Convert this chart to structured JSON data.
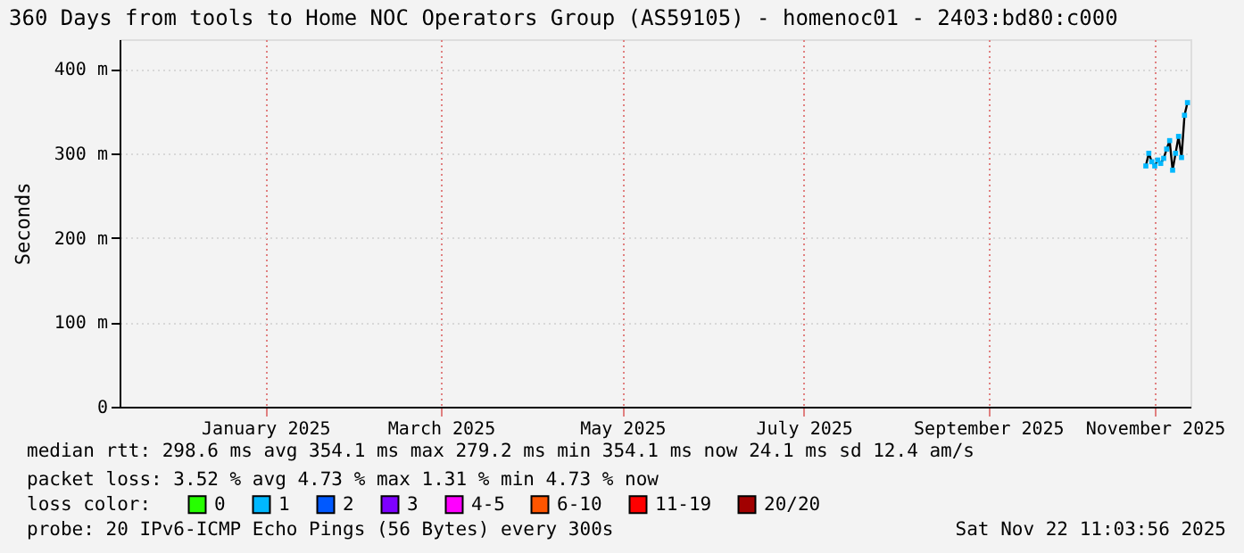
{
  "chart_data": {
    "type": "line",
    "title": "360 Days from tools to Home NOC Operators Group (AS59105) - homenoc01 - 2403:bd80:c000",
    "ylabel": "Seconds",
    "x": [
      "2025-11-07",
      "2025-11-08",
      "2025-11-09",
      "2025-11-10",
      "2025-11-11",
      "2025-11-12",
      "2025-11-13",
      "2025-11-14",
      "2025-11-15",
      "2025-11-16",
      "2025-11-17",
      "2025-11-18",
      "2025-11-19",
      "2025-11-20",
      "2025-11-21"
    ],
    "xlim": [
      "2024-11-27",
      "2025-11-22"
    ],
    "xticks": [
      {
        "value": "2025-01-15",
        "label": "January 2025"
      },
      {
        "value": "2025-03-15",
        "label": "March 2025"
      },
      {
        "value": "2025-05-15",
        "label": "May 2025"
      },
      {
        "value": "2025-07-15",
        "label": "July 2025"
      },
      {
        "value": "2025-09-15",
        "label": "September 2025"
      },
      {
        "value": "2025-11-10",
        "label": "November 2025"
      }
    ],
    "ylim": [
      0,
      435
    ],
    "yticks": [
      0,
      {
        "value": 100,
        "label": "100 m"
      },
      {
        "value": 200,
        "label": "200 m"
      },
      {
        "value": 300,
        "label": "300 m"
      },
      {
        "value": 400,
        "label": "400 m"
      }
    ],
    "grid": true,
    "legend": "bottom",
    "legend_title": "loss color:",
    "series": [
      {
        "color": "#000000",
        "values": [
          285,
          300,
          290,
          285,
          292,
          288,
          294,
          305,
          315,
          280,
          300,
          320,
          295,
          345,
          360
        ]
      },
      {
        "type": "scatter",
        "name": "0",
        "color": "#26ff00",
        "values": [
          null,
          null,
          null,
          null,
          null,
          null,
          null,
          null,
          null,
          null,
          null,
          null,
          null,
          null,
          null
        ]
      },
      {
        "type": "scatter",
        "name": "1",
        "color": "#00b8ff",
        "values": [
          285,
          300,
          290,
          285,
          292,
          288,
          294,
          305,
          315,
          280,
          300,
          320,
          295,
          345,
          360
        ]
      },
      {
        "type": "scatter",
        "name": "2",
        "color": "#0059ff",
        "values": [
          null,
          null,
          null,
          null,
          null,
          null,
          null,
          null,
          null,
          null,
          null,
          null,
          null,
          null,
          null
        ]
      },
      {
        "type": "scatter",
        "name": "3",
        "color": "#7e00ff",
        "values": [
          null,
          null,
          null,
          null,
          null,
          null,
          null,
          null,
          null,
          null,
          null,
          null,
          null,
          null,
          null
        ]
      },
      {
        "type": "scatter",
        "name": "4-5",
        "color": "#ff00ff",
        "values": [
          null,
          null,
          null,
          null,
          null,
          null,
          null,
          null,
          null,
          null,
          null,
          null,
          null,
          null,
          null
        ]
      },
      {
        "type": "scatter",
        "name": "6-10",
        "color": "#ff5500",
        "values": [
          null,
          null,
          null,
          null,
          null,
          null,
          null,
          null,
          null,
          null,
          null,
          null,
          null,
          null,
          null
        ]
      },
      {
        "type": "scatter",
        "name": "11-19",
        "color": "#ff0000",
        "values": [
          null,
          null,
          null,
          null,
          null,
          null,
          null,
          null,
          null,
          null,
          null,
          null,
          null,
          null,
          null
        ]
      },
      {
        "type": "scatter",
        "name": "20/20",
        "color": "#a10000",
        "values": [
          null,
          null,
          null,
          null,
          null,
          null,
          null,
          null,
          null,
          null,
          null,
          null,
          null,
          null,
          null
        ]
      }
    ],
    "annotations": [
      "median rtt:  298.6 ms avg  354.1 ms max  279.2 ms min  354.1 ms now  24.1 ms sd  12.4    am/s",
      "packet loss: 3.52 % avg  4.73 % max  1.31 % min  4.73 % now",
      "probe:        20 IPv6-ICMP Echo Pings (56 Bytes) every 300s",
      "Sat Nov 22 11:03:56 2025"
    ]
  }
}
